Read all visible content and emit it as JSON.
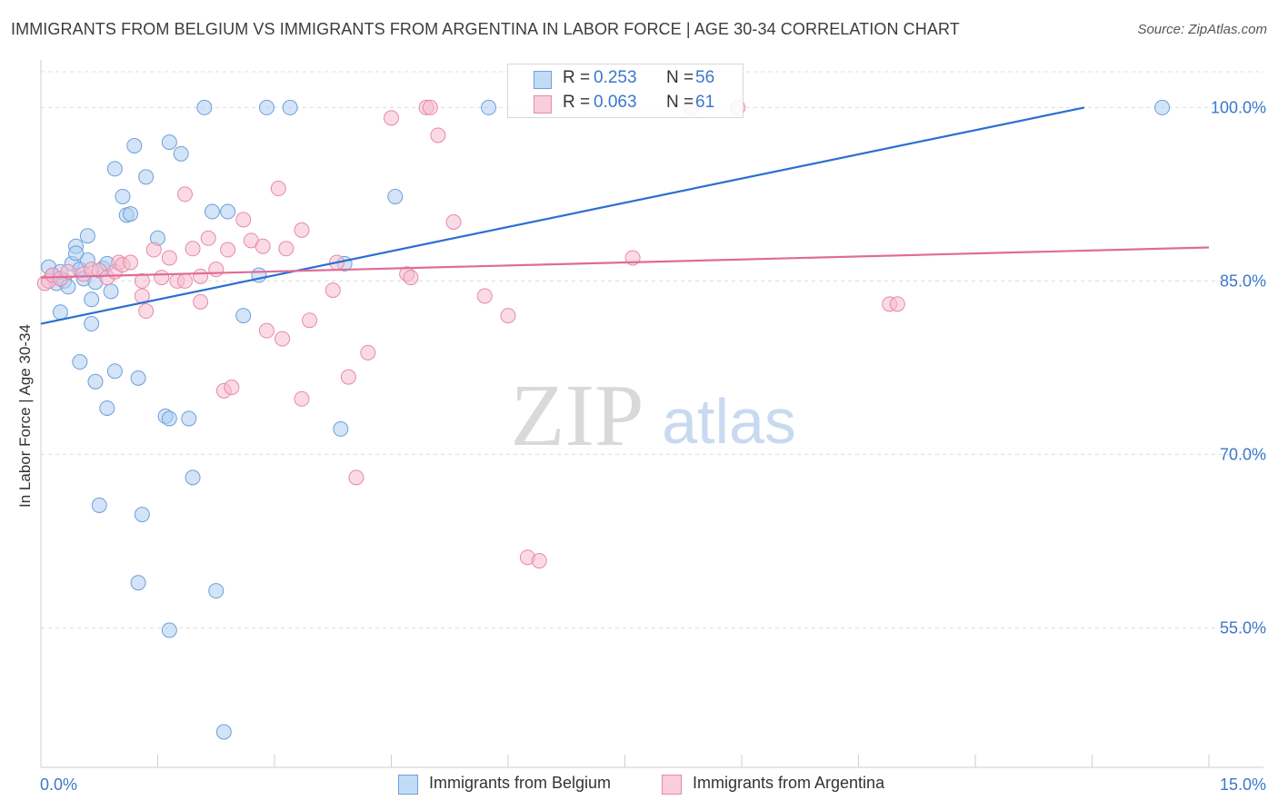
{
  "title": "IMMIGRANTS FROM BELGIUM VS IMMIGRANTS FROM ARGENTINA IN LABOR FORCE | AGE 30-34 CORRELATION CHART",
  "source": "Source: ZipAtlas.com",
  "watermark": {
    "zip": "ZIP",
    "atlas": "atlas"
  },
  "colors": {
    "belgium_fill": "#aecdf3",
    "belgium_stroke": "#6e9fd8",
    "belgium_line": "#2a6fd1",
    "argentina_fill": "#f6bcd0",
    "argentina_stroke": "#e68aa9",
    "argentina_line": "#e06b97",
    "value_text": "#3b78c9",
    "grid": "#dddddd"
  },
  "legend": {
    "belgium": {
      "r_label": "R =",
      "r_value": "0.253",
      "n_label": "N =",
      "n_value": "56"
    },
    "argentina": {
      "r_label": "R =",
      "r_value": "0.063",
      "n_label": "N =",
      "n_value": "61"
    }
  },
  "chart_data": {
    "type": "scatter",
    "title": "IMMIGRANTS FROM BELGIUM VS IMMIGRANTS FROM ARGENTINA IN LABOR FORCE | AGE 30-34 CORRELATION CHART",
    "xlabel": "",
    "ylabel": "In Labor Force | Age 30-34",
    "xlim": [
      0,
      15
    ],
    "ylim": [
      43,
      101.5
    ],
    "x_tick_labels": [
      "0.0%",
      "15.0%"
    ],
    "y_ticks": [
      55,
      70,
      85,
      100
    ],
    "y_tick_labels": [
      "55.0%",
      "70.0%",
      "85.0%",
      "100.0%"
    ],
    "series": [
      {
        "name": "Immigrants from Belgium",
        "trend": {
          "x": [
            0,
            13.4
          ],
          "y": [
            81.3,
            100.0
          ]
        },
        "points": [
          [
            0.1,
            86.2
          ],
          [
            0.15,
            85.5
          ],
          [
            0.2,
            84.8
          ],
          [
            0.25,
            85.8
          ],
          [
            0.3,
            85.0
          ],
          [
            0.35,
            84.5
          ],
          [
            0.4,
            86.5
          ],
          [
            0.45,
            88.0
          ],
          [
            0.5,
            86.0
          ],
          [
            0.55,
            85.2
          ],
          [
            0.6,
            86.8
          ],
          [
            0.65,
            83.4
          ],
          [
            0.7,
            84.9
          ],
          [
            0.8,
            86.1
          ],
          [
            0.85,
            86.5
          ],
          [
            0.9,
            84.1
          ],
          [
            0.6,
            88.9
          ],
          [
            0.45,
            87.4
          ],
          [
            0.25,
            82.3
          ],
          [
            0.65,
            81.3
          ],
          [
            0.5,
            78.0
          ],
          [
            0.7,
            76.3
          ],
          [
            0.95,
            77.2
          ],
          [
            0.85,
            74.0
          ],
          [
            1.25,
            76.6
          ],
          [
            1.6,
            73.3
          ],
          [
            1.65,
            73.1
          ],
          [
            1.9,
            73.1
          ],
          [
            1.95,
            68.0
          ],
          [
            0.75,
            65.6
          ],
          [
            1.3,
            64.8
          ],
          [
            1.25,
            58.9
          ],
          [
            1.65,
            54.8
          ],
          [
            2.25,
            58.2
          ],
          [
            2.35,
            46.0
          ],
          [
            0.95,
            94.7
          ],
          [
            1.2,
            96.7
          ],
          [
            1.35,
            94.0
          ],
          [
            1.05,
            92.3
          ],
          [
            1.1,
            90.7
          ],
          [
            1.15,
            90.8
          ],
          [
            1.5,
            88.7
          ],
          [
            1.65,
            97.0
          ],
          [
            1.8,
            96.0
          ],
          [
            2.2,
            91.0
          ],
          [
            2.4,
            91.0
          ],
          [
            2.6,
            82.0
          ],
          [
            2.8,
            85.5
          ],
          [
            2.1,
            100.0
          ],
          [
            2.9,
            100.0
          ],
          [
            3.2,
            100.0
          ],
          [
            3.85,
            72.2
          ],
          [
            3.9,
            86.5
          ],
          [
            4.55,
            92.3
          ],
          [
            5.75,
            100.0
          ],
          [
            14.4,
            100.0
          ]
        ]
      },
      {
        "name": "Immigrants from Argentina",
        "trend": {
          "x": [
            0,
            15
          ],
          "y": [
            85.3,
            87.9
          ]
        },
        "points": [
          [
            0.05,
            84.8
          ],
          [
            0.1,
            85.0
          ],
          [
            0.15,
            85.5
          ],
          [
            0.25,
            85.2
          ],
          [
            0.35,
            85.8
          ],
          [
            0.55,
            85.6
          ],
          [
            0.65,
            86.0
          ],
          [
            0.75,
            85.9
          ],
          [
            0.85,
            85.3
          ],
          [
            0.95,
            85.8
          ],
          [
            1.0,
            86.6
          ],
          [
            1.05,
            86.4
          ],
          [
            1.15,
            86.6
          ],
          [
            1.3,
            85.0
          ],
          [
            1.45,
            87.7
          ],
          [
            1.55,
            85.3
          ],
          [
            1.65,
            87.0
          ],
          [
            1.75,
            85.0
          ],
          [
            1.85,
            92.5
          ],
          [
            1.95,
            87.8
          ],
          [
            2.05,
            85.4
          ],
          [
            2.15,
            88.7
          ],
          [
            2.25,
            86.0
          ],
          [
            2.4,
            87.7
          ],
          [
            2.6,
            90.3
          ],
          [
            2.7,
            88.5
          ],
          [
            2.85,
            88.0
          ],
          [
            3.05,
            93.0
          ],
          [
            3.15,
            87.8
          ],
          [
            3.35,
            89.4
          ],
          [
            1.3,
            83.7
          ],
          [
            1.35,
            82.4
          ],
          [
            2.05,
            83.2
          ],
          [
            2.35,
            75.5
          ],
          [
            2.45,
            75.8
          ],
          [
            2.9,
            80.7
          ],
          [
            3.1,
            80.0
          ],
          [
            3.35,
            74.8
          ],
          [
            3.45,
            81.6
          ],
          [
            3.75,
            84.2
          ],
          [
            3.8,
            86.6
          ],
          [
            3.95,
            76.7
          ],
          [
            4.05,
            68.0
          ],
          [
            4.2,
            78.8
          ],
          [
            4.5,
            99.1
          ],
          [
            4.7,
            85.6
          ],
          [
            4.75,
            85.3
          ],
          [
            4.95,
            100.0
          ],
          [
            5.0,
            100.0
          ],
          [
            5.1,
            97.6
          ],
          [
            5.3,
            90.1
          ],
          [
            5.7,
            83.7
          ],
          [
            6.0,
            82.0
          ],
          [
            6.25,
            61.1
          ],
          [
            6.4,
            60.8
          ],
          [
            7.6,
            87.0
          ],
          [
            8.35,
            100.0
          ],
          [
            8.95,
            100.0
          ],
          [
            10.9,
            83.0
          ],
          [
            11.0,
            83.0
          ],
          [
            1.85,
            85.0
          ]
        ]
      }
    ]
  }
}
